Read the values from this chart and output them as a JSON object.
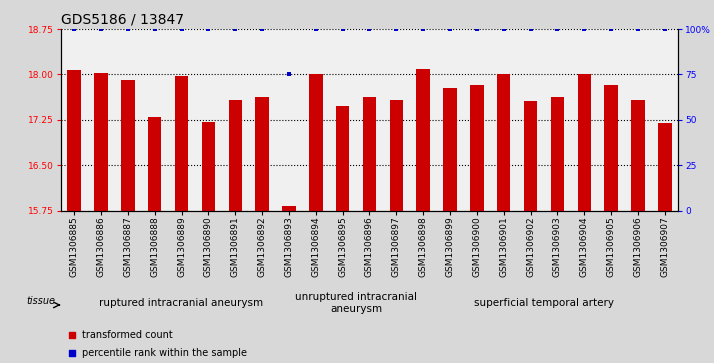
{
  "title": "GDS5186 / 13847",
  "samples": [
    "GSM1306885",
    "GSM1306886",
    "GSM1306887",
    "GSM1306888",
    "GSM1306889",
    "GSM1306890",
    "GSM1306891",
    "GSM1306892",
    "GSM1306893",
    "GSM1306894",
    "GSM1306895",
    "GSM1306896",
    "GSM1306897",
    "GSM1306898",
    "GSM1306899",
    "GSM1306900",
    "GSM1306901",
    "GSM1306902",
    "GSM1306903",
    "GSM1306904",
    "GSM1306905",
    "GSM1306906",
    "GSM1306907"
  ],
  "bar_values": [
    18.08,
    18.03,
    17.9,
    17.3,
    17.97,
    17.22,
    17.58,
    17.62,
    15.82,
    18.0,
    17.48,
    17.62,
    17.58,
    18.09,
    17.78,
    17.82,
    18.0,
    17.56,
    17.62,
    18.0,
    17.82,
    17.58,
    17.2
  ],
  "percentile_values": [
    100,
    100,
    100,
    100,
    100,
    100,
    100,
    100,
    75,
    100,
    100,
    100,
    100,
    100,
    100,
    100,
    100,
    100,
    100,
    100,
    100,
    100,
    100
  ],
  "ylim_left": [
    15.75,
    18.75
  ],
  "ylim_right": [
    0,
    100
  ],
  "yticks_left": [
    15.75,
    16.5,
    17.25,
    18.0,
    18.75
  ],
  "yticks_right": [
    0,
    25,
    50,
    75,
    100
  ],
  "ytick_labels_right": [
    "0",
    "25",
    "50",
    "75",
    "100%"
  ],
  "bar_color": "#cc0000",
  "dot_color": "#0000cc",
  "bar_width": 0.5,
  "groups": [
    {
      "label": "ruptured intracranial aneurysm",
      "start": 0,
      "end": 9,
      "color": "#90ee90"
    },
    {
      "label": "unruptured intracranial\naneurysm",
      "start": 9,
      "end": 13,
      "color": "#c8f5c8"
    },
    {
      "label": "superficial temporal artery",
      "start": 13,
      "end": 23,
      "color": "#33cc33"
    }
  ],
  "tissue_label": "tissue",
  "legend_items": [
    {
      "color": "#cc0000",
      "label": "transformed count"
    },
    {
      "color": "#0000cc",
      "label": "percentile rank within the sample"
    }
  ],
  "bg_color": "#d8d8d8",
  "plot_bg": "#f0f0f0",
  "title_fontsize": 10,
  "tick_fontsize": 6.5,
  "group_fontsize": 7.5
}
